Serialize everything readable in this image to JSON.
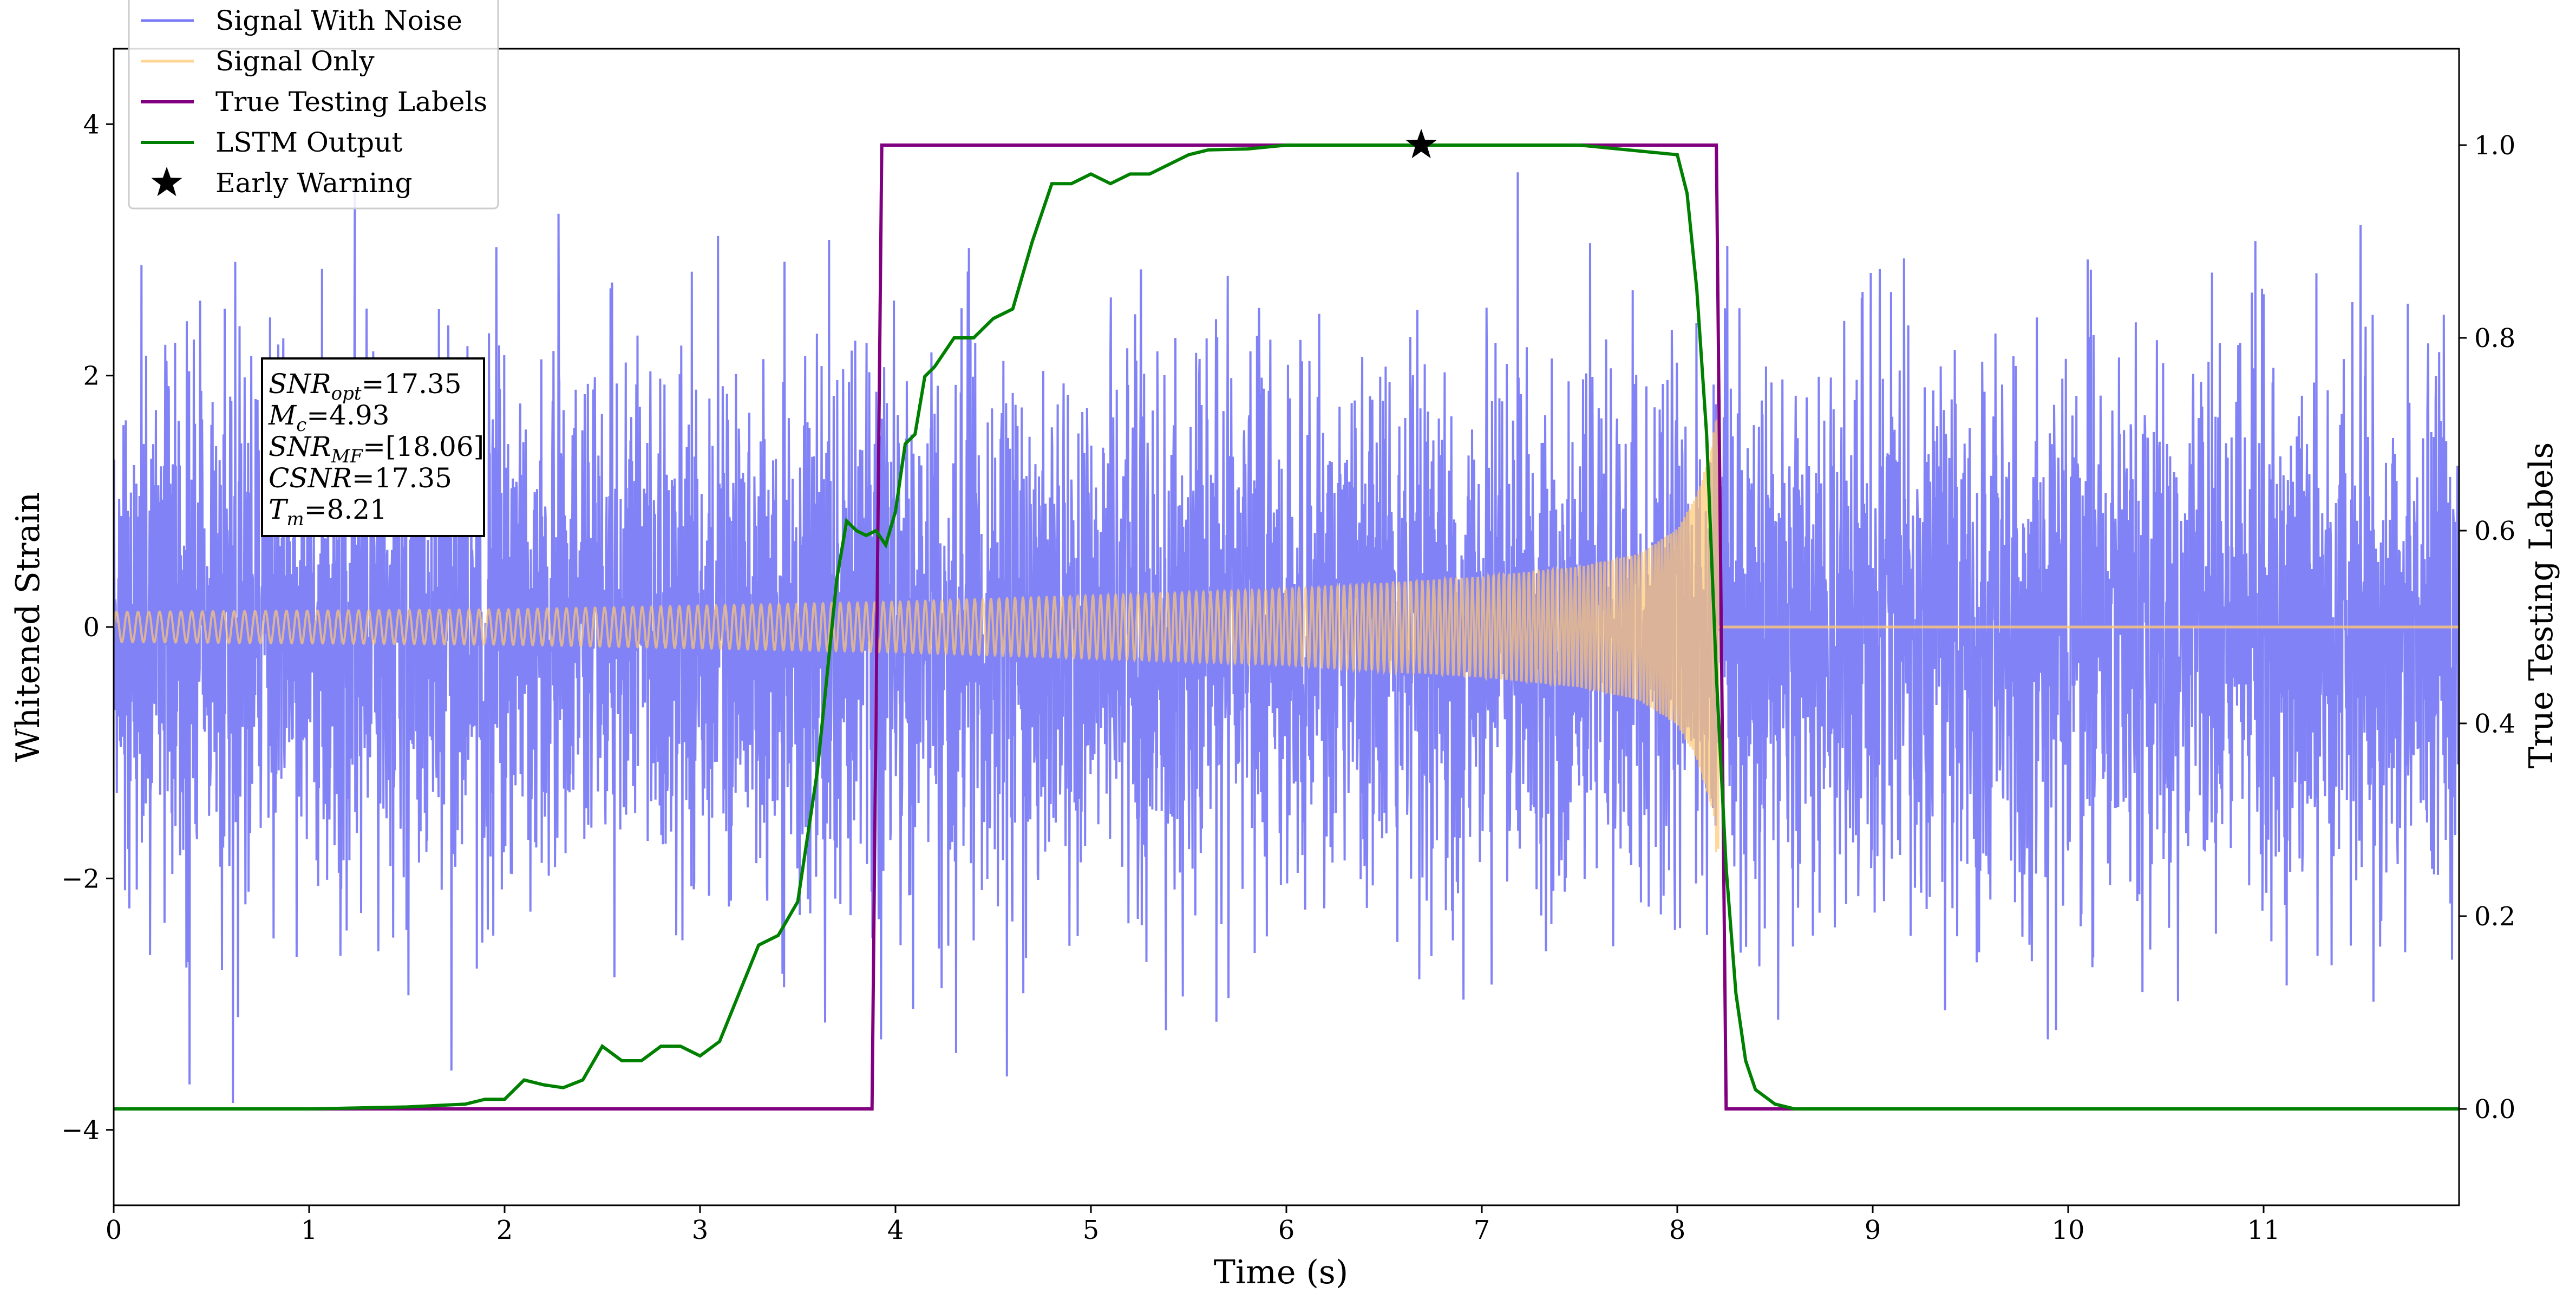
{
  "chart_data": {
    "type": "line",
    "xlabel": "Time (s)",
    "ylabel": "Whitened Strain",
    "y2label": "True Testing Labels",
    "xlim": [
      0,
      12
    ],
    "ylim": [
      -4.6,
      4.6
    ],
    "y2lim": [
      -0.1,
      1.1
    ],
    "xticks": [
      0,
      1,
      2,
      3,
      4,
      5,
      6,
      7,
      8,
      9,
      10,
      11
    ],
    "yticks": [
      -4,
      -2,
      0,
      2,
      4
    ],
    "y2ticks": [
      0.0,
      0.2,
      0.4,
      0.6,
      0.8,
      1.0
    ],
    "ytick_labels": [
      "−4",
      "−2",
      "0",
      "2",
      "4"
    ],
    "y2tick_labels": [
      "0.0",
      "0.2",
      "0.4",
      "0.6",
      "0.8",
      "1.0"
    ],
    "legend_placement": "top-left",
    "grid": false,
    "series": [
      {
        "name": "Signal With Noise",
        "color": "#7b7bf7",
        "axis": "left",
        "kind": "noise",
        "approx_std": 1.05,
        "approx_range": [
          -4.2,
          4.1
        ]
      },
      {
        "name": "Signal Only",
        "color": "#ffc870",
        "axis": "left",
        "kind": "chirp",
        "start_time": 0.0,
        "merger_time": 8.21,
        "envelope": [
          {
            "x": 0.0,
            "y": 0.12
          },
          {
            "x": 2.0,
            "y": 0.14
          },
          {
            "x": 4.0,
            "y": 0.2
          },
          {
            "x": 6.0,
            "y": 0.3
          },
          {
            "x": 7.0,
            "y": 0.4
          },
          {
            "x": 7.5,
            "y": 0.48
          },
          {
            "x": 7.8,
            "y": 0.58
          },
          {
            "x": 8.0,
            "y": 0.78
          },
          {
            "x": 8.1,
            "y": 1.05
          },
          {
            "x": 8.18,
            "y": 1.45
          },
          {
            "x": 8.21,
            "y": 2.0
          }
        ]
      },
      {
        "name": "True Testing Labels",
        "color": "#800080",
        "axis": "right",
        "x": [
          0.0,
          3.88,
          3.93,
          8.2,
          8.25,
          12.0
        ],
        "y": [
          0.0,
          0.0,
          1.0,
          1.0,
          0.0,
          0.0
        ]
      },
      {
        "name": "LSTM Output",
        "color": "#008000",
        "axis": "right",
        "x": [
          0.0,
          1.0,
          1.5,
          1.8,
          1.9,
          2.0,
          2.1,
          2.2,
          2.3,
          2.4,
          2.5,
          2.6,
          2.7,
          2.8,
          2.9,
          3.0,
          3.1,
          3.2,
          3.3,
          3.4,
          3.5,
          3.6,
          3.7,
          3.75,
          3.8,
          3.85,
          3.9,
          3.95,
          4.0,
          4.05,
          4.1,
          4.15,
          4.2,
          4.3,
          4.4,
          4.5,
          4.6,
          4.7,
          4.8,
          4.9,
          5.0,
          5.1,
          5.2,
          5.3,
          5.4,
          5.5,
          5.6,
          5.8,
          6.0,
          6.5,
          7.0,
          7.5,
          8.0,
          8.05,
          8.1,
          8.15,
          8.2,
          8.25,
          8.3,
          8.35,
          8.4,
          8.5,
          8.6,
          9.0,
          12.0
        ],
        "y": [
          0.0,
          0.0,
          0.002,
          0.005,
          0.01,
          0.01,
          0.03,
          0.025,
          0.022,
          0.03,
          0.065,
          0.05,
          0.05,
          0.065,
          0.065,
          0.055,
          0.07,
          0.12,
          0.17,
          0.18,
          0.215,
          0.35,
          0.55,
          0.61,
          0.6,
          0.595,
          0.6,
          0.585,
          0.62,
          0.69,
          0.7,
          0.76,
          0.77,
          0.8,
          0.8,
          0.82,
          0.83,
          0.9,
          0.96,
          0.96,
          0.97,
          0.96,
          0.97,
          0.97,
          0.98,
          0.99,
          0.995,
          0.996,
          1.0,
          1.0,
          1.0,
          1.0,
          0.99,
          0.95,
          0.85,
          0.7,
          0.45,
          0.25,
          0.12,
          0.05,
          0.02,
          0.005,
          0.0,
          0.0,
          0.0
        ]
      },
      {
        "name": "Early Warning",
        "color": "#000000",
        "axis": "right",
        "marker": "star",
        "x": [
          6.69
        ],
        "y": [
          1.0
        ]
      }
    ],
    "annotation": {
      "lines": [
        {
          "var": "SNR",
          "sub": "opt",
          "value": "=17.35"
        },
        {
          "var": "M",
          "sub": "c",
          "value": "=4.93"
        },
        {
          "var": "SNR",
          "sub": "MF",
          "value": "=[18.06]"
        },
        {
          "var": "CSNR",
          "sub": "",
          "value": "=17.35"
        },
        {
          "var": "T",
          "sub": "m",
          "value": "=8.21"
        }
      ]
    }
  }
}
